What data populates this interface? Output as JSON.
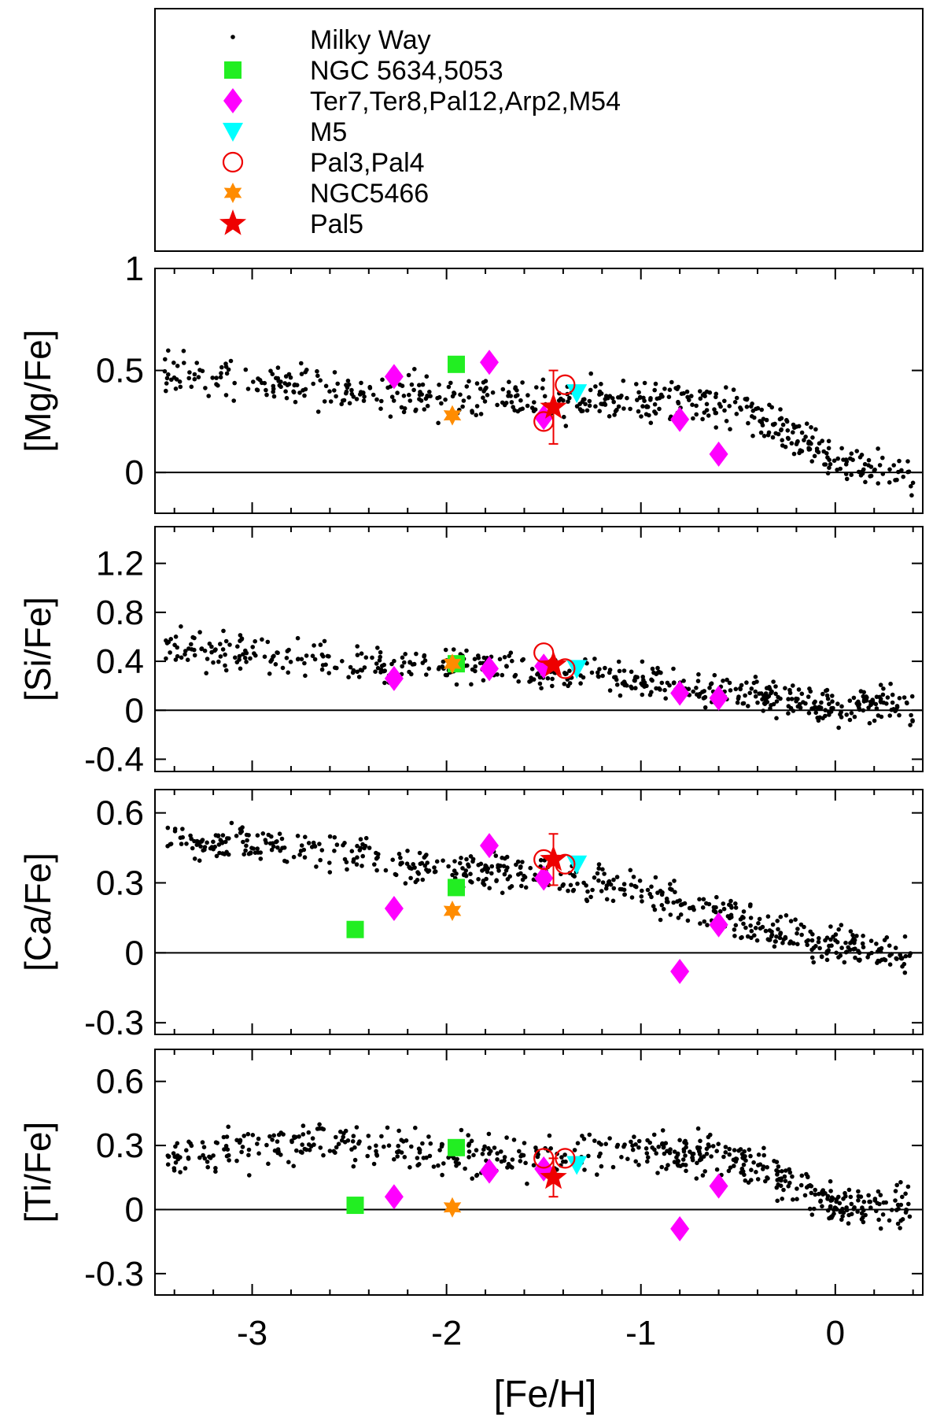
{
  "chart_data": {
    "type": "scatter",
    "xlabel": "[Fe/H]",
    "xlim": [
      -3.5,
      0.45
    ],
    "xticks": [
      -3,
      -2,
      -1,
      0
    ],
    "xtick_labels": [
      "-3",
      "-2",
      "-1",
      "0"
    ],
    "legend": {
      "placement": "top",
      "entries": [
        {
          "label": "Milky Way",
          "marker": "dot",
          "color": "#000000"
        },
        {
          "label": "NGC 5634,5053",
          "marker": "square",
          "color": "#22ee22"
        },
        {
          "label": "Ter7,Ter8,Pal12,Arp2,M54",
          "marker": "diamond",
          "color": "#ff00ff"
        },
        {
          "label": "M5",
          "marker": "triangle-down",
          "color": "#00ffff"
        },
        {
          "label": "Pal3,Pal4",
          "marker": "open-circle",
          "color": "#ee0000"
        },
        {
          "label": "NGC5466",
          "marker": "star6",
          "color": "#ff8c00"
        },
        {
          "label": "Pal5",
          "marker": "star5",
          "color": "#ee0000"
        }
      ]
    },
    "panels": [
      {
        "ylabel": "[Mg/Fe]",
        "ylim": [
          -0.2,
          1.0
        ],
        "yticks": [
          0,
          0.5,
          1
        ],
        "ytick_labels": [
          "0",
          "0.5",
          "1"
        ],
        "zero_line": true,
        "series": [
          {
            "name": "NGC 5634,5053",
            "points": [
              [
                -1.95,
                0.53
              ]
            ]
          },
          {
            "name": "Ter7,Ter8,Pal12,Arp2,M54",
            "points": [
              [
                -2.27,
                0.47
              ],
              [
                -1.78,
                0.54
              ],
              [
                -1.5,
                0.27
              ],
              [
                -0.8,
                0.26
              ],
              [
                -0.6,
                0.09
              ]
            ]
          },
          {
            "name": "M5",
            "points": [
              [
                -1.33,
                0.39
              ]
            ]
          },
          {
            "name": "Pal3,Pal4",
            "points": [
              [
                -1.5,
                0.25
              ],
              [
                -1.39,
                0.43
              ]
            ]
          },
          {
            "name": "NGC5466",
            "points": [
              [
                -1.97,
                0.28
              ]
            ]
          },
          {
            "name": "Pal5",
            "points": [
              [
                -1.45,
                0.32
              ]
            ],
            "error": [
              0.18
            ]
          }
        ],
        "milky_way": {
          "trend": [
            [
              -3.5,
              0.48
            ],
            [
              -2.0,
              0.36
            ],
            [
              -1.0,
              0.35
            ],
            [
              -0.5,
              0.32
            ],
            [
              -0.25,
              0.2
            ],
            [
              0.0,
              0.06
            ],
            [
              0.4,
              0.0
            ]
          ],
          "scatter": 0.07,
          "n": 520,
          "seed": 11
        }
      },
      {
        "ylabel": "[Si/Fe]",
        "ylim": [
          -0.5,
          1.5
        ],
        "yticks": [
          -0.4,
          0,
          0.4,
          0.8,
          1.2
        ],
        "ytick_labels": [
          "-0.4",
          "0",
          "0.4",
          "0.8",
          "1.2"
        ],
        "zero_line": true,
        "series": [
          {
            "name": "NGC 5634,5053",
            "points": [
              [
                -1.95,
                0.38
              ]
            ]
          },
          {
            "name": "Ter7,Ter8,Pal12,Arp2,M54",
            "points": [
              [
                -2.27,
                0.26
              ],
              [
                -1.78,
                0.34
              ],
              [
                -1.5,
                0.36
              ],
              [
                -0.8,
                0.14
              ],
              [
                -0.6,
                0.1
              ]
            ]
          },
          {
            "name": "M5",
            "points": [
              [
                -1.33,
                0.34
              ]
            ]
          },
          {
            "name": "Pal3,Pal4",
            "points": [
              [
                -1.5,
                0.47
              ],
              [
                -1.39,
                0.34
              ]
            ]
          },
          {
            "name": "NGC5466",
            "points": [
              [
                -1.97,
                0.38
              ]
            ]
          },
          {
            "name": "Pal5",
            "points": [
              [
                -1.45,
                0.37
              ]
            ]
          }
        ],
        "milky_way": {
          "trend": [
            [
              -3.5,
              0.52
            ],
            [
              -2.5,
              0.4
            ],
            [
              -2.0,
              0.36
            ],
            [
              -1.5,
              0.32
            ],
            [
              -1.0,
              0.24
            ],
            [
              -0.5,
              0.14
            ],
            [
              0.0,
              0.04
            ],
            [
              0.4,
              0.03
            ]
          ],
          "scatter": 0.1,
          "n": 540,
          "seed": 23
        }
      },
      {
        "ylabel": "[Ca/Fe]",
        "ylim": [
          -0.35,
          0.7
        ],
        "yticks": [
          -0.3,
          0,
          0.3,
          0.6
        ],
        "ytick_labels": [
          "-0.3",
          "0",
          "0.3",
          "0.6"
        ],
        "zero_line": true,
        "series": [
          {
            "name": "NGC 5634,5053",
            "points": [
              [
                -2.47,
                0.1
              ],
              [
                -1.95,
                0.28
              ]
            ]
          },
          {
            "name": "Ter7,Ter8,Pal12,Arp2,M54",
            "points": [
              [
                -2.27,
                0.19
              ],
              [
                -1.78,
                0.46
              ],
              [
                -1.5,
                0.32
              ],
              [
                -0.8,
                -0.08
              ],
              [
                -0.6,
                0.12
              ]
            ]
          },
          {
            "name": "M5",
            "points": [
              [
                -1.33,
                0.38
              ]
            ]
          },
          {
            "name": "Pal3,Pal4",
            "points": [
              [
                -1.5,
                0.4
              ],
              [
                -1.39,
                0.38
              ]
            ]
          },
          {
            "name": "NGC5466",
            "points": [
              [
                -1.97,
                0.18
              ]
            ]
          },
          {
            "name": "Pal5",
            "points": [
              [
                -1.45,
                0.4
              ]
            ],
            "error": [
              0.11
            ]
          }
        ],
        "milky_way": {
          "trend": [
            [
              -3.5,
              0.48
            ],
            [
              -2.5,
              0.44
            ],
            [
              -2.0,
              0.36
            ],
            [
              -1.5,
              0.34
            ],
            [
              -1.0,
              0.27
            ],
            [
              -0.5,
              0.15
            ],
            [
              0.0,
              0.03
            ],
            [
              0.4,
              -0.02
            ]
          ],
          "scatter": 0.055,
          "n": 560,
          "seed": 37
        }
      },
      {
        "ylabel": "[Ti/Fe]",
        "ylim": [
          -0.4,
          0.75
        ],
        "yticks": [
          -0.3,
          0,
          0.3,
          0.6
        ],
        "ytick_labels": [
          "-0.3",
          "0",
          "0.3",
          "0.6"
        ],
        "zero_line": true,
        "series": [
          {
            "name": "NGC 5634,5053",
            "points": [
              [
                -2.47,
                0.02
              ],
              [
                -1.95,
                0.29
              ]
            ]
          },
          {
            "name": "Ter7,Ter8,Pal12,Arp2,M54",
            "points": [
              [
                -2.27,
                0.06
              ],
              [
                -1.78,
                0.18
              ],
              [
                -1.5,
                0.19
              ],
              [
                -0.8,
                -0.09
              ],
              [
                -0.6,
                0.11
              ]
            ]
          },
          {
            "name": "M5",
            "points": [
              [
                -1.33,
                0.21
              ]
            ]
          },
          {
            "name": "Pal3,Pal4",
            "points": [
              [
                -1.5,
                0.24
              ],
              [
                -1.39,
                0.24
              ]
            ]
          },
          {
            "name": "NGC5466",
            "points": [
              [
                -1.97,
                0.01
              ]
            ]
          },
          {
            "name": "Pal5",
            "points": [
              [
                -1.45,
                0.15
              ]
            ],
            "error": [
              0.09
            ]
          }
        ],
        "milky_way": {
          "trend": [
            [
              -3.5,
              0.22
            ],
            [
              -3.0,
              0.3
            ],
            [
              -2.5,
              0.32
            ],
            [
              -2.0,
              0.25
            ],
            [
              -1.5,
              0.25
            ],
            [
              -1.0,
              0.27
            ],
            [
              -0.6,
              0.26
            ],
            [
              -0.3,
              0.16
            ],
            [
              0.0,
              0.03
            ],
            [
              0.4,
              0.02
            ]
          ],
          "scatter": 0.07,
          "n": 560,
          "seed": 53
        }
      }
    ]
  }
}
